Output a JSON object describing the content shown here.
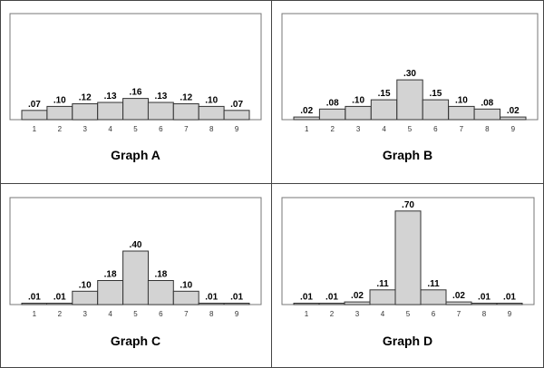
{
  "chart_data": [
    {
      "type": "bar",
      "title": "Graph A",
      "categories": [
        "1",
        "2",
        "3",
        "4",
        "5",
        "6",
        "7",
        "8",
        "9"
      ],
      "values": [
        0.07,
        0.1,
        0.12,
        0.13,
        0.16,
        0.13,
        0.12,
        0.1,
        0.07
      ],
      "value_labels": [
        ".07",
        ".10",
        ".12",
        ".13",
        ".16",
        ".13",
        ".12",
        ".10",
        ".07"
      ],
      "ylim": [
        0,
        0.8
      ],
      "grid": false
    },
    {
      "type": "bar",
      "title": "Graph B",
      "categories": [
        "1",
        "2",
        "3",
        "4",
        "5",
        "6",
        "7",
        "8",
        "9"
      ],
      "values": [
        0.02,
        0.08,
        0.1,
        0.15,
        0.3,
        0.15,
        0.1,
        0.08,
        0.02
      ],
      "value_labels": [
        ".02",
        ".08",
        ".10",
        ".15",
        ".30",
        ".15",
        ".10",
        ".08",
        ".02"
      ],
      "ylim": [
        0,
        0.8
      ],
      "grid": false
    },
    {
      "type": "bar",
      "title": "Graph C",
      "categories": [
        "1",
        "2",
        "3",
        "4",
        "5",
        "6",
        "7",
        "8",
        "9"
      ],
      "values": [
        0.01,
        0.01,
        0.1,
        0.18,
        0.4,
        0.18,
        0.1,
        0.01,
        0.01
      ],
      "value_labels": [
        ".01",
        ".01",
        ".10",
        ".18",
        ".40",
        ".18",
        ".10",
        ".01",
        ".01"
      ],
      "ylim": [
        0,
        0.8
      ],
      "grid": false
    },
    {
      "type": "bar",
      "title": "Graph D",
      "categories": [
        "1",
        "2",
        "3",
        "4",
        "5",
        "6",
        "7",
        "8",
        "9"
      ],
      "values": [
        0.01,
        0.01,
        0.02,
        0.11,
        0.7,
        0.11,
        0.02,
        0.01,
        0.01
      ],
      "value_labels": [
        ".01",
        ".01",
        ".02",
        ".11",
        ".70",
        ".11",
        ".02",
        ".01",
        ".01"
      ],
      "ylim": [
        0,
        0.8
      ],
      "grid": false
    }
  ]
}
